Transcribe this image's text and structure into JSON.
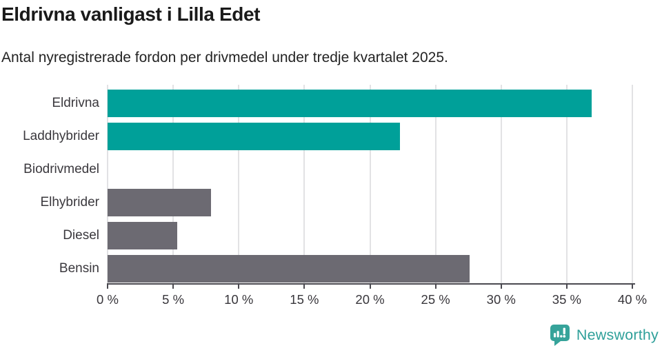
{
  "title": "Eldrivna vanligast i Lilla Edet",
  "subtitle": "Antal nyregistrerade fordon per drivmedel under tredje kvartalet 2025.",
  "branding": {
    "name": "Newsworthy",
    "icon": "newsworthy-speech-bubble-bar-chart-icon",
    "icon_color": "#36a39a",
    "text_color": "#2fa09a"
  },
  "colors": {
    "teal_bar": "#00a099",
    "gray_bar": "#6c6a72",
    "gridline": "#e2e2e4",
    "axis": "#4a4950",
    "title_text": "#1a1a1a",
    "subtitle_text": "#232323",
    "label_text": "#3a383d"
  },
  "chart_data": {
    "type": "bar",
    "orientation": "horizontal",
    "title": "Eldrivna vanligast i Lilla Edet",
    "subtitle": "Antal nyregistrerade fordon per drivmedel under tredje kvartalet 2025.",
    "categories": [
      "Eldrivna",
      "Laddhybrider",
      "Biodrivmedel",
      "Elhybrider",
      "Diesel",
      "Bensin"
    ],
    "values": [
      36.9,
      22.3,
      0,
      7.9,
      5.3,
      27.6
    ],
    "value_unit": "%",
    "bar_colors": [
      "#00a099",
      "#00a099",
      "#6c6a72",
      "#6c6a72",
      "#6c6a72",
      "#6c6a72"
    ],
    "xlim": [
      0,
      40
    ],
    "tick_step": 5,
    "tick_labels": [
      "0 %",
      "5 %",
      "10 %",
      "15 %",
      "20 %",
      "25 %",
      "30 %",
      "35 %",
      "40 %"
    ],
    "grid": "vertical-only",
    "legend": "none"
  }
}
